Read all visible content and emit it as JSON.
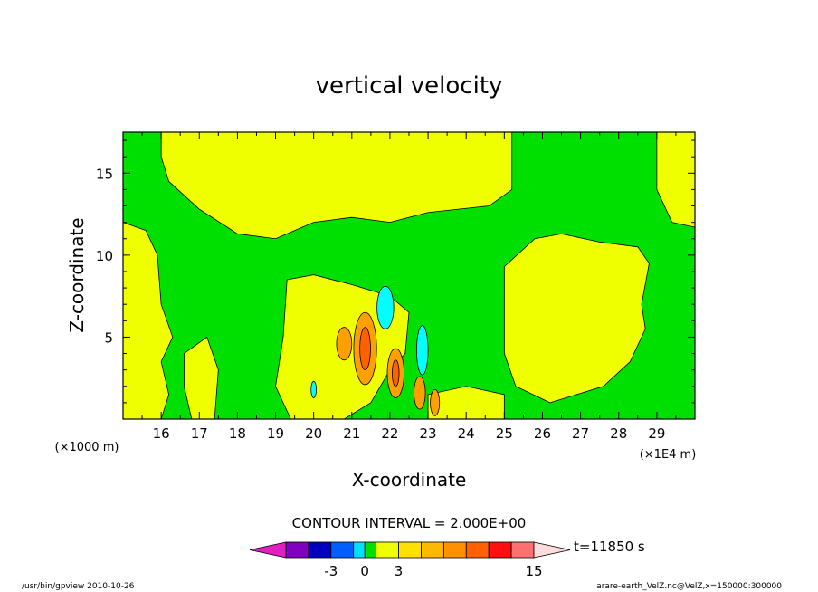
{
  "chart_data": {
    "type": "heatmap",
    "title": "vertical velocity",
    "xlabel": "X-coordinate",
    "ylabel": "Z-coordinate",
    "x_unit_left": "(×1000 m)",
    "x_unit_right": "(×1E4 m)",
    "x_range": [
      15.0,
      30.0
    ],
    "y_range": [
      0.0,
      17.5
    ],
    "x_ticks": [
      "16",
      "17",
      "18",
      "19",
      "20",
      "21",
      "22",
      "23",
      "24",
      "25",
      "26",
      "27",
      "28",
      "29"
    ],
    "x_tick_values": [
      16,
      17,
      18,
      19,
      20,
      21,
      22,
      23,
      24,
      25,
      26,
      27,
      28,
      29
    ],
    "y_ticks": [
      "5",
      "10",
      "15"
    ],
    "y_tick_values": [
      5,
      10,
      15
    ],
    "contour_interval_text": "CONTOUR INTERVAL = 2.000E+00",
    "time_label": "t=11850 s",
    "colorbar": {
      "tick_labels": [
        "-3",
        "0",
        "3",
        "15"
      ],
      "tick_levels": [
        -3,
        0,
        3,
        15
      ],
      "levels": [
        -9,
        -7,
        -5,
        -3,
        -1,
        0,
        1,
        3,
        5,
        7,
        9,
        11,
        13,
        15,
        17
      ],
      "colors": [
        "#e020c0",
        "#8000c0",
        "#0000c0",
        "#0060ff",
        "#00e0ff",
        "#00e000",
        "#f0ff00",
        "#ffe000",
        "#ffb800",
        "#ff9000",
        "#ff6000",
        "#ff1010",
        "#ff7070",
        "#ffc0c0",
        "#ffdcdc"
      ]
    },
    "field_colors": {
      "low": "#00ffff",
      "mid": "#00e000",
      "high": "#f0ff00",
      "orange": "#ffa000",
      "red": "#ff6000"
    }
  },
  "footer": {
    "left": "/usr/bin/gpview  2010-10-26",
    "right": "arare-earth_VelZ.nc@VelZ,x=150000:300000"
  }
}
